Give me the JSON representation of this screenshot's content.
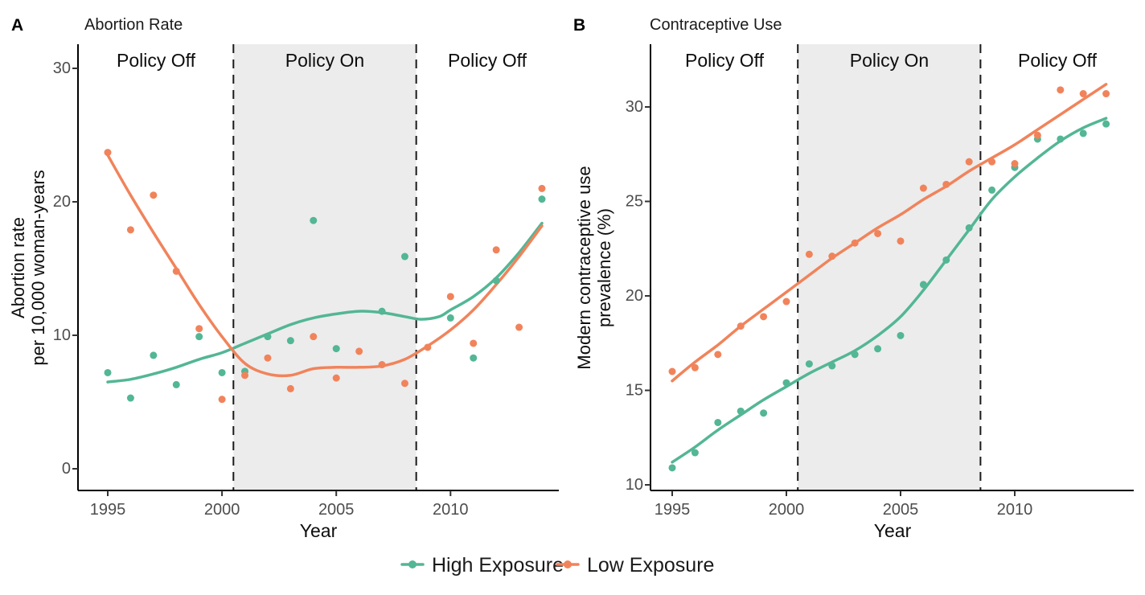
{
  "chart_data": [
    {
      "panel": "A",
      "type": "scatter",
      "title": "Abortion Rate",
      "xlabel": "Year",
      "ylabel_lines": [
        "Abortion rate",
        "per 10,000 woman-years"
      ],
      "xlim": [
        1993.7,
        2014.8
      ],
      "ylim": [
        0,
        31.8
      ],
      "xticks": [
        1995,
        2000,
        2005,
        2010
      ],
      "yticks": [
        0,
        10,
        20,
        30
      ],
      "grid": false,
      "shaded_region": {
        "x0": 2000.5,
        "x1": 2008.5,
        "fill": "#ECECEC",
        "labels": [
          "Policy Off",
          "Policy On",
          "Policy Off"
        ]
      },
      "series": [
        {
          "name": "High Exposure",
          "color": "#53B695",
          "points": [
            [
              1995,
              7.2
            ],
            [
              1996,
              5.3
            ],
            [
              1997,
              8.5
            ],
            [
              1998,
              6.3
            ],
            [
              1999,
              9.9
            ],
            [
              2000,
              7.2
            ],
            [
              2001,
              7.3
            ],
            [
              2002,
              9.9
            ],
            [
              2003,
              9.6
            ],
            [
              2004,
              18.6
            ],
            [
              2005,
              9.0
            ],
            [
              2007,
              11.8
            ],
            [
              2008,
              15.9
            ],
            [
              2010,
              11.3
            ],
            [
              2011,
              8.3
            ],
            [
              2012,
              14.1
            ],
            [
              2014,
              20.2
            ]
          ],
          "smooth_line": [
            [
              1995,
              6.5
            ],
            [
              1996,
              6.7
            ],
            [
              1997,
              7.1
            ],
            [
              1998,
              7.6
            ],
            [
              1999,
              8.2
            ],
            [
              2000,
              8.7
            ],
            [
              2001,
              9.4
            ],
            [
              2002,
              10.1
            ],
            [
              2003,
              10.8
            ],
            [
              2004,
              11.3
            ],
            [
              2005,
              11.6
            ],
            [
              2006,
              11.8
            ],
            [
              2007,
              11.7
            ],
            [
              2008,
              11.4
            ],
            [
              2008.7,
              11.2
            ],
            [
              2009.5,
              11.4
            ],
            [
              2010,
              11.9
            ],
            [
              2011,
              12.9
            ],
            [
              2012,
              14.3
            ],
            [
              2013,
              16.2
            ],
            [
              2014,
              18.4
            ]
          ]
        },
        {
          "name": "Low Exposure",
          "color": "#F1835B",
          "points": [
            [
              1995,
              23.7
            ],
            [
              1996,
              17.9
            ],
            [
              1997,
              20.5
            ],
            [
              1998,
              14.8
            ],
            [
              1999,
              10.5
            ],
            [
              2000,
              5.2
            ],
            [
              2001,
              7.0
            ],
            [
              2002,
              8.3
            ],
            [
              2003,
              6.0
            ],
            [
              2004,
              9.9
            ],
            [
              2005,
              6.8
            ],
            [
              2006,
              8.8
            ],
            [
              2007,
              7.8
            ],
            [
              2008,
              6.4
            ],
            [
              2009,
              9.1
            ],
            [
              2010,
              12.9
            ],
            [
              2011,
              9.4
            ],
            [
              2012,
              16.4
            ],
            [
              2013,
              10.6
            ],
            [
              2014,
              21.0
            ]
          ],
          "smooth_line": [
            [
              1995,
              23.5
            ],
            [
              1996,
              20.5
            ],
            [
              1997,
              17.7
            ],
            [
              1998,
              15.0
            ],
            [
              1999,
              12.3
            ],
            [
              2000,
              9.9
            ],
            [
              2001,
              7.9
            ],
            [
              2002,
              7.1
            ],
            [
              2003,
              7.0
            ],
            [
              2004,
              7.5
            ],
            [
              2005,
              7.6
            ],
            [
              2006,
              7.6
            ],
            [
              2007,
              7.7
            ],
            [
              2008,
              8.2
            ],
            [
              2009,
              9.2
            ],
            [
              2010,
              10.4
            ],
            [
              2011,
              11.9
            ],
            [
              2012,
              13.8
            ],
            [
              2013,
              15.9
            ],
            [
              2014,
              18.2
            ]
          ]
        }
      ]
    },
    {
      "panel": "B",
      "type": "scatter",
      "title": "Contraceptive Use",
      "xlabel": "Year",
      "ylabel_lines": [
        "Modern contraceptive use",
        "prevalence (%)"
      ],
      "xlim": [
        1994.0,
        2015.1
      ],
      "ylim": [
        9.7,
        33.3
      ],
      "xticks": [
        1995,
        2000,
        2005,
        2010
      ],
      "yticks": [
        10,
        15,
        20,
        25,
        30
      ],
      "grid": false,
      "shaded_region": {
        "x0": 2000.5,
        "x1": 2008.5,
        "fill": "#ECECEC",
        "labels": [
          "Policy Off",
          "Policy On",
          "Policy Off"
        ]
      },
      "series": [
        {
          "name": "High Exposure",
          "color": "#53B695",
          "points": [
            [
              1995,
              10.9
            ],
            [
              1996,
              11.7
            ],
            [
              1997,
              13.3
            ],
            [
              1998,
              13.9
            ],
            [
              1999,
              13.8
            ],
            [
              2000,
              15.4
            ],
            [
              2001,
              16.4
            ],
            [
              2002,
              16.3
            ],
            [
              2003,
              16.9
            ],
            [
              2004,
              17.2
            ],
            [
              2005,
              17.9
            ],
            [
              2006,
              20.6
            ],
            [
              2007,
              21.9
            ],
            [
              2008,
              23.6
            ],
            [
              2009,
              25.6
            ],
            [
              2010,
              26.8
            ],
            [
              2011,
              28.3
            ],
            [
              2012,
              28.3
            ],
            [
              2013,
              28.6
            ],
            [
              2014,
              29.1
            ]
          ],
          "smooth_line": [
            [
              1995,
              11.2
            ],
            [
              1996,
              12.0
            ],
            [
              1997,
              12.9
            ],
            [
              1998,
              13.7
            ],
            [
              1999,
              14.5
            ],
            [
              2000,
              15.2
            ],
            [
              2001,
              15.9
            ],
            [
              2002,
              16.5
            ],
            [
              2003,
              17.1
            ],
            [
              2004,
              17.9
            ],
            [
              2005,
              18.9
            ],
            [
              2006,
              20.3
            ],
            [
              2007,
              21.9
            ],
            [
              2008,
              23.5
            ],
            [
              2009,
              25.1
            ],
            [
              2010,
              26.3
            ],
            [
              2011,
              27.3
            ],
            [
              2012,
              28.2
            ],
            [
              2013,
              28.9
            ],
            [
              2014,
              29.4
            ]
          ]
        },
        {
          "name": "Low Exposure",
          "color": "#F1835B",
          "points": [
            [
              1995,
              16.0
            ],
            [
              1996,
              16.2
            ],
            [
              1997,
              16.9
            ],
            [
              1998,
              18.4
            ],
            [
              1999,
              18.9
            ],
            [
              2000,
              19.7
            ],
            [
              2001,
              22.2
            ],
            [
              2002,
              22.1
            ],
            [
              2003,
              22.8
            ],
            [
              2004,
              23.3
            ],
            [
              2005,
              22.9
            ],
            [
              2006,
              25.7
            ],
            [
              2007,
              25.9
            ],
            [
              2008,
              27.1
            ],
            [
              2009,
              27.1
            ],
            [
              2010,
              27.0
            ],
            [
              2011,
              28.5
            ],
            [
              2012,
              30.9
            ],
            [
              2013,
              30.7
            ],
            [
              2014,
              30.7
            ]
          ],
          "smooth_line": [
            [
              1995,
              15.5
            ],
            [
              1996,
              16.5
            ],
            [
              1997,
              17.4
            ],
            [
              1998,
              18.4
            ],
            [
              1999,
              19.3
            ],
            [
              2000,
              20.2
            ],
            [
              2001,
              21.1
            ],
            [
              2002,
              22.0
            ],
            [
              2003,
              22.8
            ],
            [
              2004,
              23.6
            ],
            [
              2005,
              24.3
            ],
            [
              2006,
              25.1
            ],
            [
              2007,
              25.8
            ],
            [
              2008,
              26.6
            ],
            [
              2009,
              27.3
            ],
            [
              2010,
              28.0
            ],
            [
              2011,
              28.8
            ],
            [
              2012,
              29.6
            ],
            [
              2013,
              30.4
            ],
            [
              2014,
              31.2
            ]
          ]
        }
      ]
    }
  ],
  "panel_a": {
    "letter": "A",
    "title": "Abortion Rate",
    "xlabel": "Year",
    "ylabel_line1": "Abortion rate",
    "ylabel_line2": "per 10,000 woman-years",
    "region_label_left": "Policy Off",
    "region_label_mid": "Policy On",
    "region_label_right": "Policy Off"
  },
  "panel_b": {
    "letter": "B",
    "title": "Contraceptive Use",
    "xlabel": "Year",
    "ylabel_line1": "Modern contraceptive use",
    "ylabel_line2": "prevalence (%)",
    "region_label_left": "Policy Off",
    "region_label_mid": "Policy On",
    "region_label_right": "Policy Off"
  },
  "legend": {
    "items": [
      {
        "label": "High Exposure",
        "color": "#53B695"
      },
      {
        "label": "Low Exposure",
        "color": "#F1835B"
      }
    ]
  }
}
